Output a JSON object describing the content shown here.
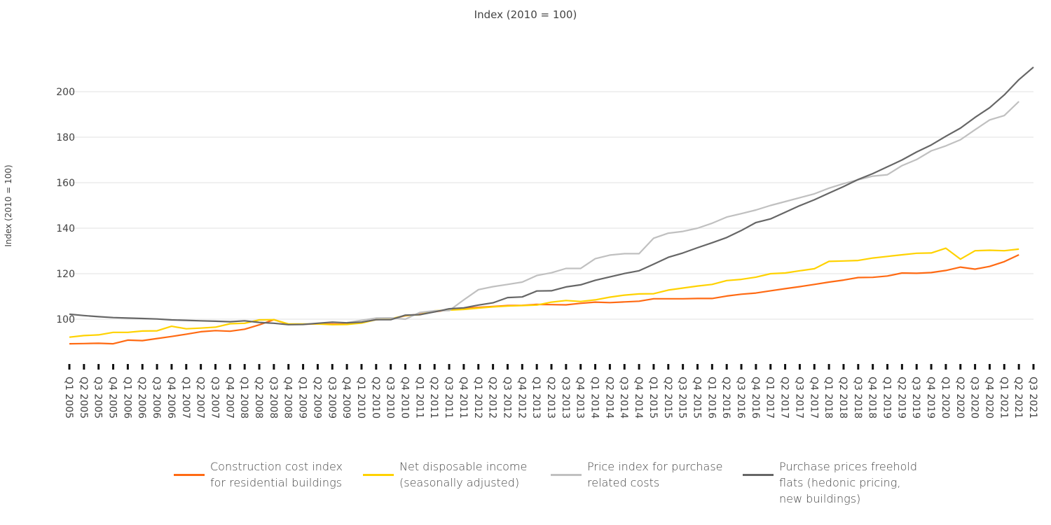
{
  "chart_data": {
    "type": "line",
    "title": "Index (2010 = 100)",
    "ylabel": "Index (2010 = 100)",
    "xlabel": "",
    "ylim": [
      80,
      212
    ],
    "yticks": [
      100,
      120,
      140,
      160,
      180,
      200
    ],
    "grid": true,
    "legend_position": "bottom",
    "x": [
      "Q1 2005",
      "Q2 2005",
      "Q3 2005",
      "Q4 2005",
      "Q1 2006",
      "Q2 2006",
      "Q3 2006",
      "Q4 2006",
      "Q1 2007",
      "Q2 2007",
      "Q3 2007",
      "Q4 2007",
      "Q1 2008",
      "Q2 2008",
      "Q3 2008",
      "Q4 2008",
      "Q1 2009",
      "Q2 2009",
      "Q3 2009",
      "Q4 2009",
      "Q1 2010",
      "Q2 2010",
      "Q3 2010",
      "Q4 2010",
      "Q1 2011",
      "Q2 2011",
      "Q3 2011",
      "Q4 2011",
      "Q1 2012",
      "Q2 2012",
      "Q3 2012",
      "Q4 2012",
      "Q1 2013",
      "Q2 2013",
      "Q3 2013",
      "Q4 2013",
      "Q1 2014",
      "Q2 2014",
      "Q3 2014",
      "Q4 2014",
      "Q1 2015",
      "Q2 2015",
      "Q3 2015",
      "Q4 2015",
      "Q1 2016",
      "Q2 2016",
      "Q3 2016",
      "Q4 2016",
      "Q1 2017",
      "Q2 2017",
      "Q3 2017",
      "Q4 2017",
      "Q1 2018",
      "Q2 2018",
      "Q3 2018",
      "Q4 2018",
      "Q1 2019",
      "Q2 2019",
      "Q3 2019",
      "Q4 2019",
      "Q1 2020",
      "Q2 2020",
      "Q3 2020",
      "Q4 2020",
      "Q1 2021",
      "Q2 2021",
      "Q3 2021"
    ],
    "series": [
      {
        "name": "Construction cost index\nfor residential buildings",
        "color": "#ff6a13",
        "values": [
          89.2,
          89.3,
          89.4,
          89.2,
          90.8,
          90.6,
          91.5,
          92.4,
          93.4,
          94.5,
          95.0,
          94.7,
          95.6,
          97.5,
          99.8,
          97.8,
          97.8,
          97.9,
          97.9,
          97.8,
          98.6,
          99.8,
          100.1,
          101.5,
          102.2,
          103.3,
          104.1,
          104.7,
          105.2,
          105.6,
          106.0,
          106.1,
          106.5,
          106.4,
          106.3,
          107.0,
          107.5,
          107.3,
          107.6,
          107.9,
          109.0,
          109.0,
          109.0,
          109.1,
          109.1,
          110.2,
          111.0,
          111.5,
          112.5,
          113.4,
          114.3,
          115.3,
          116.3,
          117.2,
          118.3,
          118.4,
          119.0,
          120.3,
          120.2,
          120.5,
          121.4,
          122.9,
          122.0,
          123.2,
          125.3,
          128.3,
          null
        ]
      },
      {
        "name": "Net disposable income\n(seasonally adjusted)",
        "color": "#ffd200",
        "values": [
          92.1,
          92.8,
          93.1,
          94.2,
          94.2,
          94.8,
          94.9,
          96.9,
          95.8,
          96.1,
          96.5,
          98.0,
          98.2,
          99.7,
          99.8,
          97.9,
          97.9,
          97.9,
          97.6,
          97.7,
          98.3,
          99.8,
          100.2,
          101.6,
          102.0,
          103.7,
          104.0,
          104.3,
          104.9,
          105.4,
          105.8,
          106.0,
          106.2,
          107.5,
          108.2,
          107.8,
          108.5,
          109.7,
          110.6,
          111.1,
          111.2,
          112.8,
          113.7,
          114.6,
          115.3,
          117.0,
          117.5,
          118.5,
          120.0,
          120.3,
          121.3,
          122.2,
          125.4,
          125.6,
          125.8,
          126.9,
          127.6,
          128.3,
          129.0,
          129.1,
          131.2,
          126.4,
          130.1,
          130.3,
          130.1,
          130.8,
          null
        ]
      },
      {
        "name": "Price index for purchase\nrelated costs",
        "color": "#c0c0c0",
        "values": [
          null,
          null,
          null,
          null,
          null,
          null,
          null,
          null,
          null,
          null,
          null,
          null,
          null,
          null,
          null,
          null,
          null,
          null,
          null,
          98.5,
          99.5,
          100.5,
          100.6,
          100.0,
          103.0,
          103.7,
          103.8,
          108.5,
          113.0,
          114.3,
          115.3,
          116.3,
          119.2,
          120.4,
          122.3,
          122.3,
          126.6,
          128.2,
          128.8,
          128.8,
          135.6,
          137.8,
          138.6,
          140.0,
          142.2,
          144.9,
          146.4,
          148.0,
          150.0,
          151.7,
          153.4,
          155.1,
          157.6,
          159.6,
          161.3,
          162.9,
          163.5,
          167.5,
          170.2,
          174.0,
          176.2,
          178.9,
          183.3,
          187.6,
          189.5,
          195.7,
          null
        ]
      },
      {
        "name": "Purchase prices freehold\nflats (hedonic pricing,\nnew buildings)",
        "color": "#666666",
        "values": [
          102.2,
          101.6,
          101.1,
          100.7,
          100.5,
          100.3,
          100.1,
          99.7,
          99.5,
          99.3,
          99.1,
          98.9,
          99.3,
          98.6,
          98.2,
          97.6,
          97.7,
          98.2,
          98.7,
          98.4,
          98.7,
          99.8,
          99.8,
          101.8,
          102.0,
          103.2,
          104.6,
          105.0,
          106.2,
          107.2,
          109.5,
          109.8,
          112.4,
          112.5,
          114.2,
          115.1,
          117.1,
          118.6,
          120.1,
          121.3,
          124.2,
          127.2,
          129.1,
          131.4,
          133.6,
          135.9,
          139.0,
          142.5,
          144.1,
          147.0,
          149.9,
          152.5,
          155.4,
          158.3,
          161.4,
          164.0,
          167.0,
          170.0,
          173.5,
          176.6,
          180.4,
          184.0,
          188.7,
          193.0,
          198.6,
          205.3,
          210.8
        ]
      }
    ]
  }
}
